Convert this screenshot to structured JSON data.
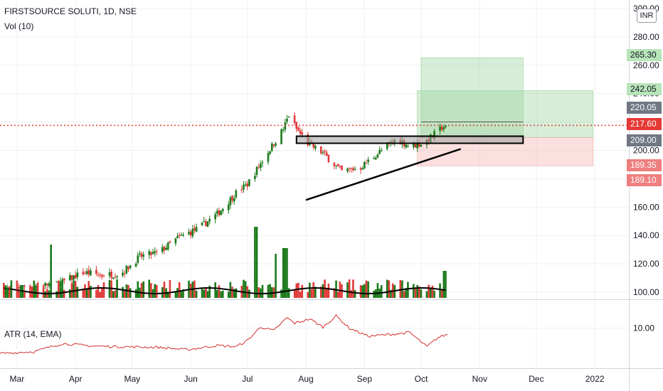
{
  "header": {
    "symbol": "FIRSTSOURCE SOLUTI, 1D, NSE",
    "volume_indicator": "Vol (10)",
    "atr_indicator": "ATR (14, EMA)",
    "currency": "INR"
  },
  "colors": {
    "up": "#1b7a1b",
    "down": "#e03a3a",
    "green_zone": "#a5d6a7",
    "red_zone": "#f8bbbb",
    "grid": "#eef0f3",
    "atr_line": "#d32f2f"
  },
  "price_tags": [
    {
      "value": "265.30",
      "bg": "#b7e4b9",
      "fg": "#131722"
    },
    {
      "value": "242.05",
      "bg": "#b7e4b9",
      "fg": "#131722"
    },
    {
      "value": "220.05",
      "bg": "#707783",
      "fg": "#ffffff"
    },
    {
      "value": "217.60",
      "bg": "#e53935",
      "fg": "#ffffff"
    },
    {
      "value": "209.00",
      "bg": "#707783",
      "fg": "#ffffff"
    },
    {
      "value": "189.35",
      "bg": "#ef7f7f",
      "fg": "#ffffff"
    },
    {
      "value": "189.10",
      "bg": "#ef7f7f",
      "fg": "#ffffff"
    }
  ],
  "chart_data": [
    {
      "type": "candlestick",
      "title": "FIRSTSOURCE SOLUTI, 1D, NSE",
      "y_ticks": [
        "300.00",
        "280.00",
        "260.00",
        "240.00",
        "220.00",
        "200.00",
        "180.00",
        "160.00",
        "140.00",
        "120.00",
        "100.00"
      ],
      "y_tick_values": [
        300,
        280,
        260,
        240,
        220,
        200,
        180,
        160,
        140,
        120,
        100
      ],
      "ylim": [
        96,
        301
      ],
      "x_ticks": [
        "Mar",
        "Apr",
        "May",
        "Jun",
        "Jul",
        "Aug",
        "Sep",
        "Oct",
        "Nov",
        "Dec",
        "2022"
      ],
      "x_tick_dates": [
        "2021-03-01",
        "2021-04-01",
        "2021-05-01",
        "2021-06-01",
        "2021-07-01",
        "2021-08-01",
        "2021-09-01",
        "2021-10-01",
        "2021-11-01",
        "2021-12-01",
        "2022-01-01"
      ],
      "price_path_dates": [
        "2021-02-20",
        "2021-03-05",
        "2021-03-15",
        "2021-03-25",
        "2021-04-05",
        "2021-04-15",
        "2021-04-25",
        "2021-05-05",
        "2021-05-15",
        "2021-05-25",
        "2021-06-05",
        "2021-06-15",
        "2021-06-25",
        "2021-07-01",
        "2021-07-10",
        "2021-07-20",
        "2021-07-23",
        "2021-07-27",
        "2021-08-02",
        "2021-08-10",
        "2021-08-20",
        "2021-08-30",
        "2021-09-10",
        "2021-09-18",
        "2021-09-25",
        "2021-10-02",
        "2021-10-07",
        "2021-10-12",
        "2021-10-14"
      ],
      "price_path_values": [
        101,
        104,
        105,
        107,
        114,
        112,
        113,
        125,
        128,
        138,
        145,
        155,
        170,
        176,
        195,
        215,
        225,
        215,
        205,
        198,
        185,
        188,
        200,
        208,
        203,
        205,
        210,
        216,
        217.6
      ],
      "last_price": 217.6,
      "trendline": {
        "start": {
          "date": "2021-08-01",
          "value": 165
        },
        "end": {
          "date": "2021-10-22",
          "value": 201
        }
      },
      "resistance_box": {
        "start": "2021-07-27",
        "end": "2021-11-24",
        "low": 205,
        "high": 210
      },
      "position_zones": [
        {
          "kind": "target",
          "start": "2021-10-01",
          "end": "2021-11-24",
          "low": 209.0,
          "high": 265.3
        },
        {
          "kind": "target",
          "start": "2021-09-29",
          "end": "2021-12-31",
          "low": 209.0,
          "high": 242.05
        },
        {
          "kind": "stop",
          "start": "2021-09-29",
          "end": "2021-12-31",
          "low": 189.1,
          "high": 209.0
        }
      ]
    },
    {
      "type": "bar",
      "title": "Vol (10)",
      "series": [
        {
          "name": "Vol (10)"
        }
      ],
      "highlight_spikes": [
        {
          "date": "2021-03-20",
          "rel": 0.75
        },
        {
          "date": "2021-07-05",
          "rel": 1.0
        },
        {
          "date": "2021-07-21",
          "rel": 0.7
        },
        {
          "date": "2021-07-17",
          "rel": 0.62
        },
        {
          "date": "2021-10-14",
          "rel": 0.38
        }
      ]
    },
    {
      "type": "line",
      "title": "ATR (14, EMA)",
      "y_ticks": [
        "10.00"
      ],
      "y_tick_values": [
        10
      ],
      "ylim": [
        5,
        12.5
      ],
      "path_dates": [
        "2021-02-20",
        "2021-03-10",
        "2021-03-25",
        "2021-04-10",
        "2021-04-25",
        "2021-05-15",
        "2021-05-30",
        "2021-06-15",
        "2021-06-25",
        "2021-07-01",
        "2021-07-08",
        "2021-07-15",
        "2021-07-22",
        "2021-07-26",
        "2021-08-03",
        "2021-08-10",
        "2021-08-17",
        "2021-08-24",
        "2021-09-03",
        "2021-09-15",
        "2021-09-25",
        "2021-10-04",
        "2021-10-10",
        "2021-10-15"
      ],
      "path_values": [
        5.9,
        6.2,
        7.5,
        7.1,
        7.0,
        6.9,
        6.5,
        7.2,
        7.0,
        8.0,
        10.2,
        9.6,
        11.7,
        10.8,
        11.5,
        10.2,
        12.0,
        10.0,
        8.7,
        9.0,
        9.3,
        7.0,
        8.5,
        9.0
      ]
    }
  ]
}
